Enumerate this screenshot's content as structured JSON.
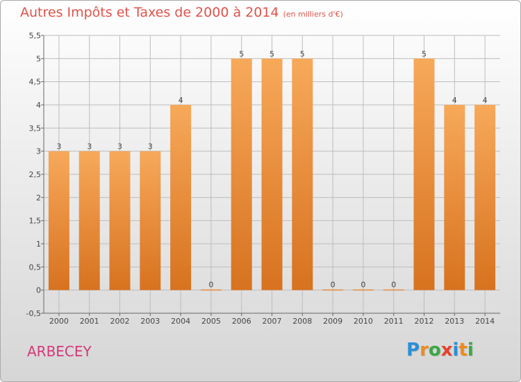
{
  "title": "Autres Impôts et Taxes de 2000 à 2014",
  "unit_note": "(en milliers d'€)",
  "place_name": "ARBECEY",
  "logo": {
    "letters": [
      "P",
      "r",
      "o",
      "x",
      "i",
      "t",
      "i"
    ],
    "colors": [
      "#2a8fd8",
      "#f08a1c",
      "#3aa845",
      "#e8412c",
      "#2a8fd8",
      "#f08a1c",
      "#3aa845"
    ]
  },
  "colors": {
    "bar_top": "#f7a95a",
    "bar_bottom": "#d7721f",
    "grid": "#bdbdbd",
    "title": "#e0524a",
    "place": "#d6377a"
  },
  "chart_data": {
    "type": "bar",
    "categories": [
      "2000",
      "2001",
      "2002",
      "2003",
      "2004",
      "2005",
      "2006",
      "2007",
      "2008",
      "2009",
      "2010",
      "2011",
      "2012",
      "2013",
      "2014"
    ],
    "values": [
      3,
      3,
      3,
      3,
      4,
      0,
      5,
      5,
      5,
      0,
      0,
      0,
      5,
      4,
      4
    ],
    "ylim": [
      -0.5,
      5.5
    ],
    "yticks": [
      "-0,5",
      "0",
      "0,5",
      "1",
      "1,5",
      "2",
      "2,5",
      "3",
      "3,5",
      "4",
      "4,5",
      "5",
      "5,5"
    ],
    "ytick_values": [
      -0.5,
      0,
      0.5,
      1,
      1.5,
      2,
      2.5,
      3,
      3.5,
      4,
      4.5,
      5,
      5.5
    ],
    "grid": true,
    "legend": "none"
  }
}
